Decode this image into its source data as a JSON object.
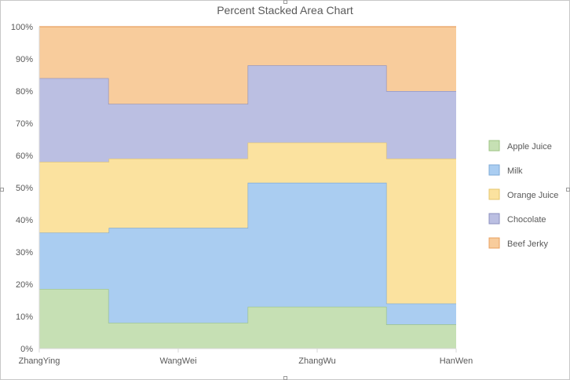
{
  "chart_data": {
    "type": "area",
    "subtype": "percent-stacked-step",
    "title": "Percent Stacked Area Chart",
    "categories": [
      "ZhangYing",
      "WangWei",
      "ZhangWu",
      "HanWen"
    ],
    "y_ticks": [
      "0%",
      "10%",
      "20%",
      "30%",
      "40%",
      "50%",
      "60%",
      "70%",
      "80%",
      "90%",
      "100%"
    ],
    "ylim": [
      0,
      100
    ],
    "x_step_positions": [
      0,
      0.5,
      1.5,
      2.5,
      3
    ],
    "segments": [
      {
        "x_from": 0,
        "x_to": 0.5
      },
      {
        "x_from": 0.5,
        "x_to": 1.5
      },
      {
        "x_from": 1.5,
        "x_to": 2.5
      },
      {
        "x_from": 2.5,
        "x_to": 3
      }
    ],
    "series": [
      {
        "name": "Apple Juice",
        "fill": "#c6e0b4",
        "line": "#9dc383",
        "values": [
          18.5,
          8,
          13,
          7.5
        ]
      },
      {
        "name": "Milk",
        "fill": "#aacdf1",
        "line": "#7faad6",
        "values": [
          17.5,
          29.5,
          38.5,
          6.5
        ]
      },
      {
        "name": "Orange Juice",
        "fill": "#fbe29f",
        "line": "#e6c66e",
        "values": [
          22,
          21.5,
          12.5,
          45
        ]
      },
      {
        "name": "Chocolate",
        "fill": "#bbbfe2",
        "line": "#8b8fbf",
        "values": [
          26,
          17,
          24,
          21
        ]
      },
      {
        "name": "Beef Jerky",
        "fill": "#f8cc9c",
        "line": "#e8a060",
        "values": [
          16,
          24,
          12,
          20
        ]
      }
    ],
    "grid": true,
    "legend": "right"
  }
}
